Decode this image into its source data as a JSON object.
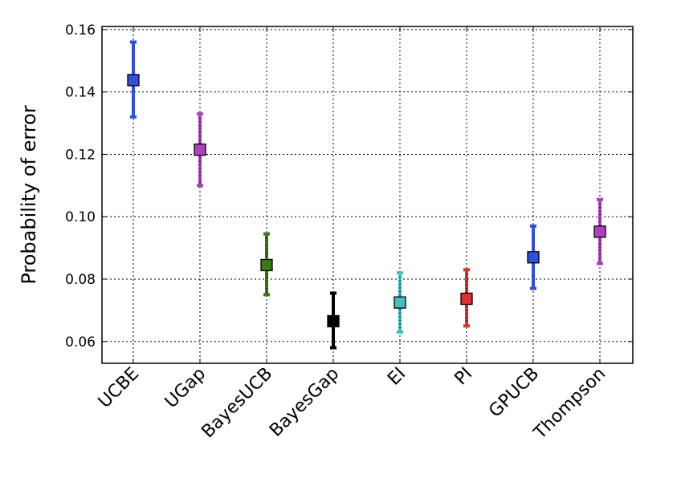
{
  "chart_data": {
    "type": "errorbar",
    "title": "",
    "xlabel": "",
    "ylabel": "Probability of error",
    "ylim": [
      0.053,
      0.161
    ],
    "yticks": [
      "0.06",
      "0.08",
      "0.10",
      "0.12",
      "0.14",
      "0.16"
    ],
    "grid": true,
    "categories": [
      "UCBE",
      "UGap",
      "BayesUCB",
      "BayesGap",
      "EI",
      "PI",
      "GPUCB",
      "Thompson"
    ],
    "points": [
      {
        "category": "UCBE",
        "value": 0.1438,
        "lower": 0.132,
        "upper": 0.156,
        "color": "#2f4fe0",
        "style": "solid"
      },
      {
        "category": "UGap",
        "value": 0.1215,
        "lower": 0.11,
        "upper": 0.133,
        "color": "#b040c0",
        "style": "dotted"
      },
      {
        "category": "BayesUCB",
        "value": 0.0845,
        "lower": 0.075,
        "upper": 0.0945,
        "color": "#3a7a10",
        "style": "dotted"
      },
      {
        "category": "BayesGap",
        "value": 0.0665,
        "lower": 0.058,
        "upper": 0.0755,
        "color": "#000000",
        "style": "solid"
      },
      {
        "category": "EI",
        "value": 0.0725,
        "lower": 0.063,
        "upper": 0.082,
        "color": "#40c0c0",
        "style": "dotted"
      },
      {
        "category": "PI",
        "value": 0.0737,
        "lower": 0.065,
        "upper": 0.083,
        "color": "#e03030",
        "style": "dotted"
      },
      {
        "category": "GPUCB",
        "value": 0.087,
        "lower": 0.077,
        "upper": 0.097,
        "color": "#2f4fe0",
        "style": "solid"
      },
      {
        "category": "Thompson",
        "value": 0.0952,
        "lower": 0.085,
        "upper": 0.1055,
        "color": "#b040c0",
        "style": "dotted"
      }
    ]
  }
}
